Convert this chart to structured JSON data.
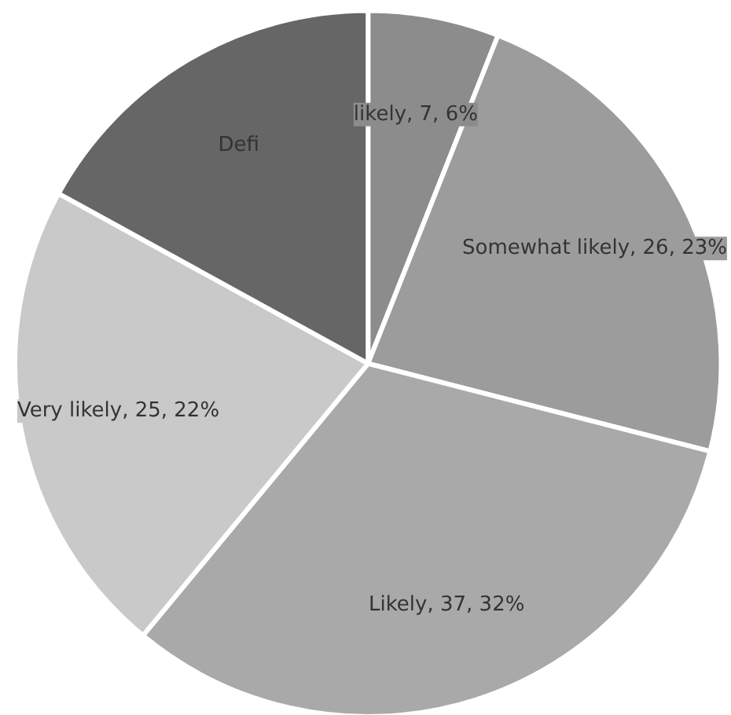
{
  "chart_data": {
    "type": "pie",
    "categories": [
      null,
      null,
      null,
      null,
      null
    ],
    "values": [
      6,
      23,
      32,
      22,
      17
    ],
    "colors": [
      "#8c8c8c",
      "#9c9c9c",
      "#a9a9a9",
      "#c9c9c9",
      "#666666"
    ],
    "value_labels": [
      "likely, 7, 6%",
      "Somewhat likely, 26, 23%",
      "Likely, 37, 32%",
      "Very likely, 25, 22%",
      "Defi"
    ]
  }
}
